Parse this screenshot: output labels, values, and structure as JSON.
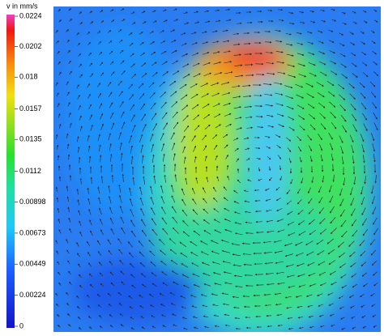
{
  "chart_data": {
    "type": "colorbar",
    "title": "v in mm/s",
    "clim": [
      0,
      0.0224
    ],
    "cticks": [
      0,
      0.00224,
      0.00449,
      0.00673,
      0.00898,
      0.0112,
      0.0135,
      0.0157,
      0.018,
      0.0202,
      0.0224
    ]
  }
}
